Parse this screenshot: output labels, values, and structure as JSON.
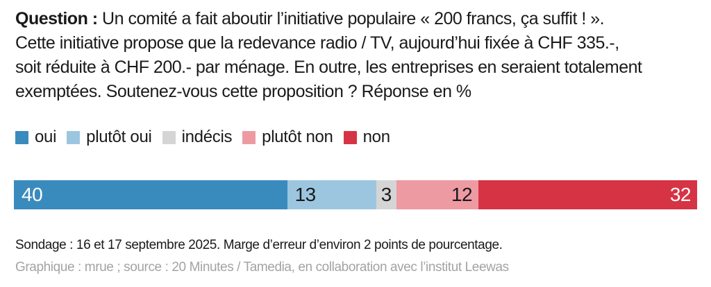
{
  "question": {
    "label": "Question :",
    "lines": [
      " Un comité a fait aboutir l’initiative populaire « 200 francs, ça suffit ! ».",
      "Cette initiative propose que la redevance radio / TV, aujourd’hui fixée à CHF 335.-,",
      "soit réduite à CHF 200.- par ménage. En outre, les entreprises en seraient totalement",
      "exemptées. Soutenez-vous cette proposition ? Réponse en %"
    ]
  },
  "chart_data": {
    "type": "bar",
    "orientation": "horizontal-stacked",
    "title": "Soutenez-vous cette proposition ? Réponse en %",
    "categories": [
      "oui",
      "plutôt oui",
      "indécis",
      "plutôt non",
      "non"
    ],
    "values": [
      40,
      13,
      3,
      12,
      32
    ],
    "unit": "%",
    "total": 100,
    "colors": [
      "#3a8bbd",
      "#9cc6e0",
      "#d5d5d5",
      "#ee9aa3",
      "#d63445"
    ],
    "label_colors": [
      "#ffffff",
      "#1a1a1a",
      "#1a1a1a",
      "#1a1a1a",
      "#ffffff"
    ],
    "label_align": [
      "left",
      "left",
      "center",
      "right",
      "right"
    ],
    "legend_position": "top",
    "grid": false
  },
  "footer": {
    "note": "Sondage : 16 et 17 septembre 2025. Marge d’erreur d’environ 2 points de pourcentage.",
    "credit": "Graphique : mrue ; source : 20 Minutes / Tamedia, en collaboration avec l’institut Leewas"
  }
}
